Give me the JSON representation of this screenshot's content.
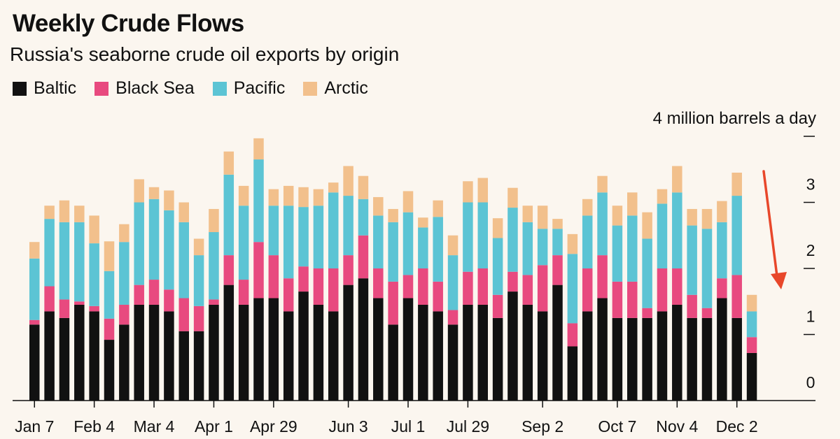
{
  "title": "Weekly Crude Flows",
  "subtitle": "Russia's seaborne crude oil exports by origin",
  "unit_label": "4 million barrels a day",
  "legend": [
    {
      "name": "Baltic",
      "color": "#111111"
    },
    {
      "name": "Black Sea",
      "color": "#e84a7f"
    },
    {
      "name": "Pacific",
      "color": "#5cc4d4"
    },
    {
      "name": "Arctic",
      "color": "#f2c08c"
    }
  ],
  "colors": {
    "arrow": "#e8472a",
    "background": "#fbf6ef"
  },
  "chart_data": {
    "type": "bar",
    "stacked": true,
    "grid": false,
    "legend_placement": "top-left",
    "ylim": [
      0,
      4
    ],
    "yticks": [
      0,
      1,
      2,
      3,
      4
    ],
    "ytick_labels": [
      "0",
      "1",
      "2",
      "3",
      ""
    ],
    "xtick_labels": [
      "Jan 7",
      "Feb 4",
      "Mar 4",
      "Apr 1",
      "Apr 29",
      "Jun 3",
      "Jul 1",
      "Jul 29",
      "Sep 2",
      "Oct 7",
      "Nov 4",
      "Dec 2"
    ],
    "xtick_positions": [
      0,
      4,
      8,
      12,
      16,
      21,
      25,
      29,
      34,
      39,
      43,
      47
    ],
    "series": [
      {
        "name": "Baltic",
        "values": [
          1.15,
          1.35,
          1.25,
          1.45,
          1.35,
          0.92,
          1.15,
          1.45,
          1.45,
          1.35,
          1.05,
          1.05,
          1.45,
          1.75,
          1.45,
          1.55,
          1.55,
          1.35,
          1.65,
          1.45,
          1.35,
          1.75,
          1.85,
          1.55,
          1.15,
          1.55,
          1.45,
          1.35,
          1.15,
          1.45,
          1.45,
          1.25,
          1.65,
          1.45,
          1.35,
          1.75,
          0.82,
          1.35,
          1.55,
          1.25,
          1.25,
          1.25,
          1.35,
          1.45,
          1.25,
          1.25,
          1.55,
          1.25,
          0.72
        ]
      },
      {
        "name": "Black Sea",
        "values": [
          0.07,
          0.38,
          0.28,
          0.05,
          0.08,
          0.32,
          0.3,
          0.3,
          0.38,
          0.33,
          0.5,
          0.38,
          0.08,
          0.45,
          0.38,
          0.85,
          0.65,
          0.5,
          0.38,
          0.55,
          0.65,
          0.45,
          0.65,
          0.45,
          0.65,
          0.35,
          0.55,
          0.45,
          0.22,
          0.5,
          0.55,
          0.35,
          0.3,
          0.45,
          0.7,
          0.45,
          0.35,
          0.65,
          0.65,
          0.55,
          0.55,
          0.15,
          0.65,
          0.55,
          0.35,
          0.15,
          0.3,
          0.65,
          0.24
        ]
      },
      {
        "name": "Pacific",
        "values": [
          0.93,
          1.02,
          1.17,
          1.2,
          0.95,
          0.72,
          0.95,
          1.25,
          1.22,
          1.2,
          1.15,
          0.77,
          1.02,
          1.22,
          1.12,
          1.25,
          0.75,
          1.1,
          0.9,
          0.95,
          1.15,
          0.9,
          0.55,
          0.8,
          0.9,
          0.95,
          0.62,
          0.98,
          0.83,
          1.05,
          1.0,
          0.86,
          0.97,
          0.8,
          0.55,
          0.4,
          1.05,
          0.8,
          0.95,
          0.85,
          1.0,
          1.05,
          0.98,
          1.15,
          1.05,
          1.2,
          0.85,
          1.2,
          0.39
        ]
      },
      {
        "name": "Arctic",
        "values": [
          0.25,
          0.2,
          0.33,
          0.25,
          0.42,
          0.45,
          0.27,
          0.35,
          0.18,
          0.3,
          0.3,
          0.25,
          0.35,
          0.35,
          0.3,
          0.32,
          0.25,
          0.3,
          0.3,
          0.25,
          0.15,
          0.45,
          0.35,
          0.28,
          0.2,
          0.32,
          0.15,
          0.25,
          0.3,
          0.32,
          0.37,
          0.3,
          0.3,
          0.25,
          0.35,
          0.15,
          0.3,
          0.25,
          0.25,
          0.3,
          0.35,
          0.4,
          0.22,
          0.4,
          0.25,
          0.3,
          0.32,
          0.35,
          0.25
        ]
      }
    ]
  }
}
